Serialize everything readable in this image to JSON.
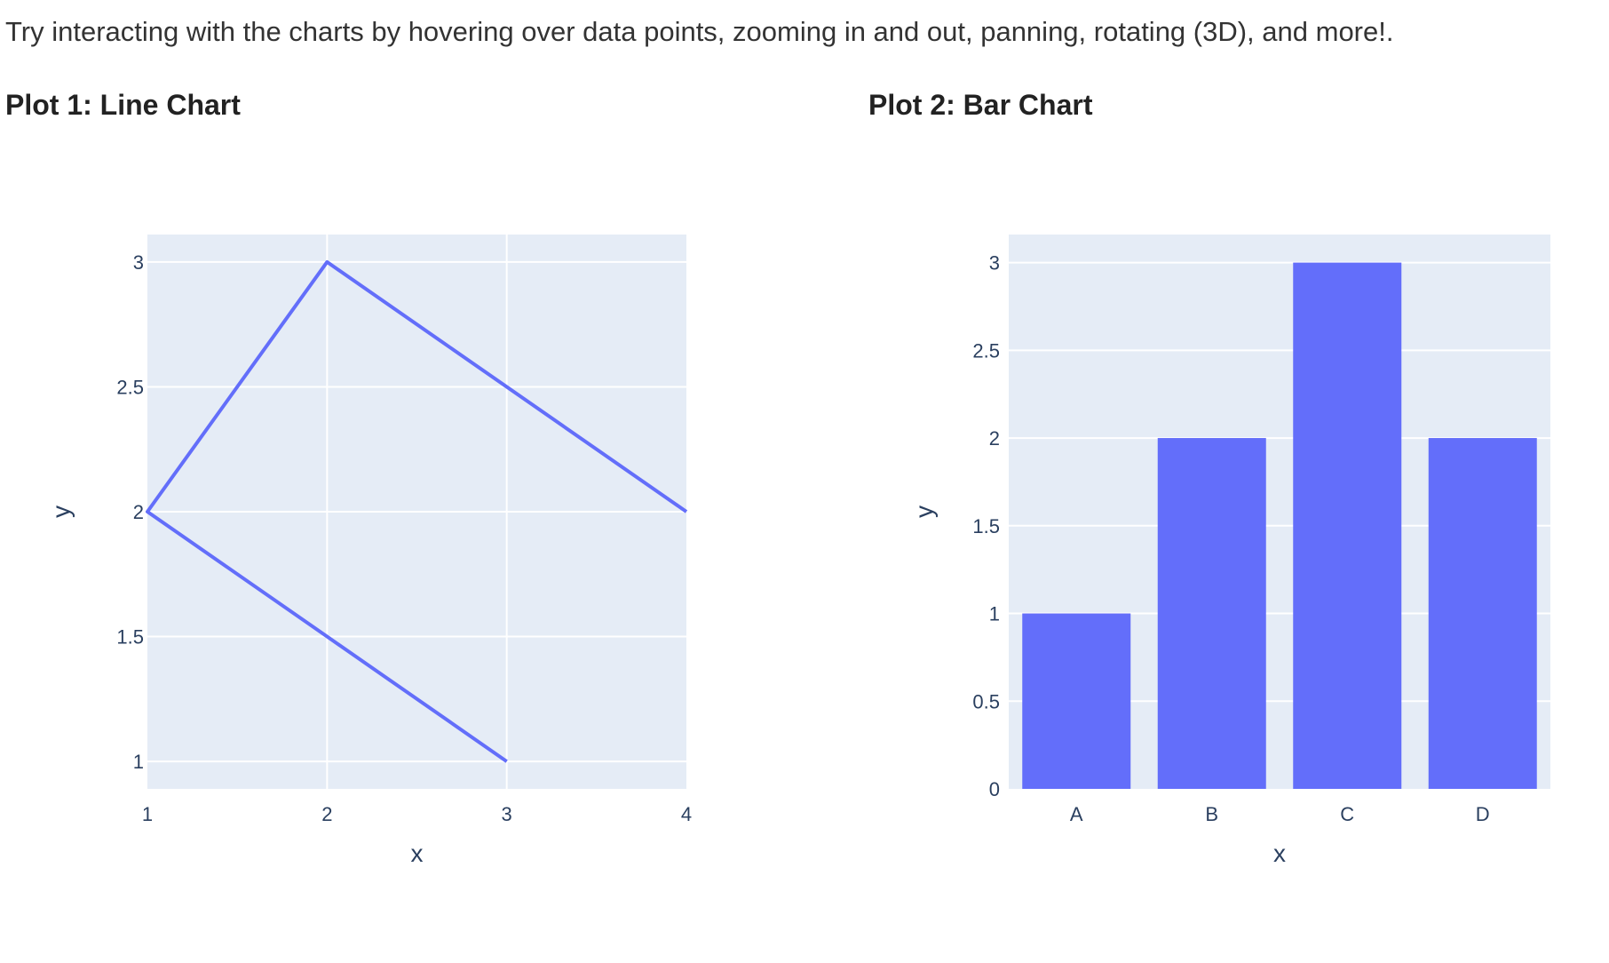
{
  "intro_text": "Try interacting with the charts by hovering over data points, zooming in and out, panning, rotating (3D), and more!.",
  "colors": {
    "plot_background": "#e5ecf6",
    "grid": "#ffffff",
    "trace": "#636efa",
    "tick_text": "#2a3f5f"
  },
  "chart_data": [
    {
      "type": "line",
      "heading": "Plot 1: Line Chart",
      "x": [
        3,
        2,
        1,
        2,
        4
      ],
      "y": [
        1,
        1.5,
        2,
        3,
        2
      ],
      "xlabel": "x",
      "ylabel": "y",
      "xlim": [
        1,
        4
      ],
      "ylim": [
        0.89,
        3.11
      ],
      "xticks": [
        1,
        2,
        3,
        4
      ],
      "yticks": [
        1,
        1.5,
        2,
        2.5,
        3
      ],
      "xtick_labels": [
        "1",
        "2",
        "3",
        "4"
      ],
      "ytick_labels": [
        "1",
        "1.5",
        "2",
        "2.5",
        "3"
      ],
      "grid": true,
      "legend": "none"
    },
    {
      "type": "bar",
      "heading": "Plot 2: Bar Chart",
      "categories": [
        "A",
        "B",
        "C",
        "D"
      ],
      "values": [
        1,
        2,
        3,
        2
      ],
      "xlabel": "x",
      "ylabel": "y",
      "ylim": [
        0,
        3.16
      ],
      "yticks": [
        0,
        0.5,
        1,
        1.5,
        2,
        2.5,
        3
      ],
      "ytick_labels": [
        "0",
        "0.5",
        "1",
        "1.5",
        "2",
        "2.5",
        "3"
      ],
      "grid": true,
      "legend": "none"
    }
  ]
}
